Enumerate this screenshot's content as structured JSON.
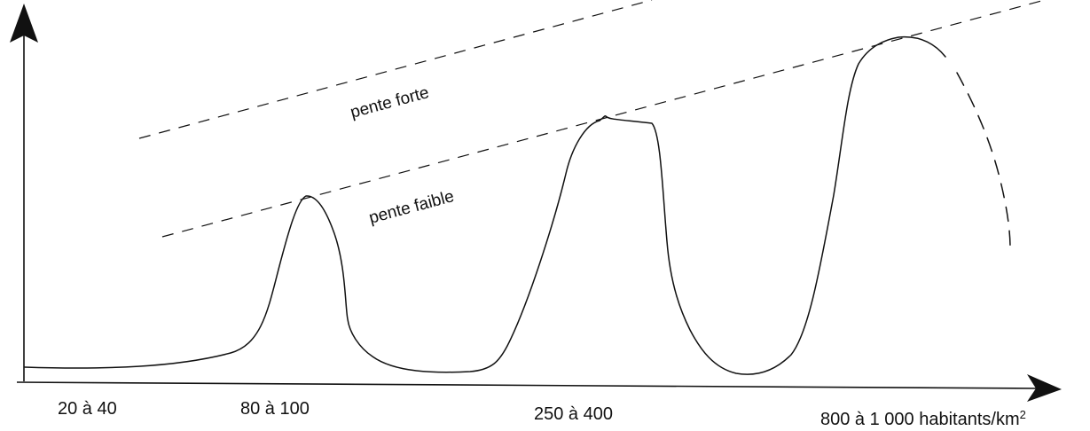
{
  "x_labels": {
    "c1": "20 à 40",
    "c2": "80 à 100",
    "c3": "250 à 400",
    "c4": "800 à 1 000 habitants/km",
    "c4_sup": "2"
  },
  "slopes": {
    "strong": "pente forte",
    "weak": "pente faible"
  },
  "colors": {
    "ink": "#111111",
    "background": "#ffffff"
  }
}
